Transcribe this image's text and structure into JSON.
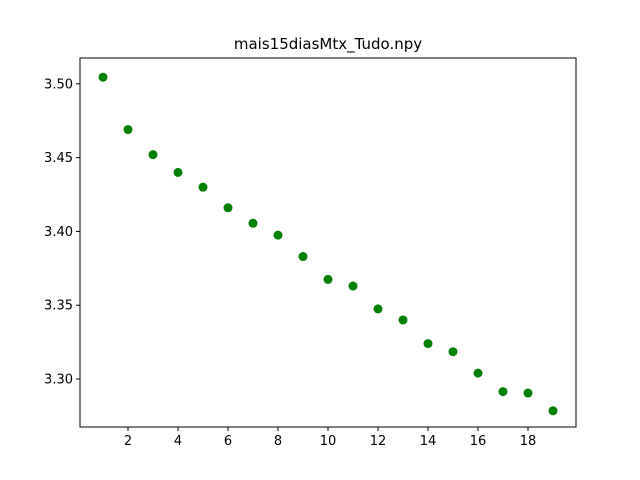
{
  "chart_data": {
    "type": "scatter",
    "title": "mais15diasMtx_Tudo.npy",
    "xlabel": "",
    "ylabel": "",
    "xlim": [
      0.08,
      19.92
    ],
    "ylim": [
      3.2675,
      3.5175
    ],
    "xticks": [
      2,
      4,
      6,
      8,
      10,
      12,
      14,
      16,
      18
    ],
    "xtick_labels": [
      "2",
      "4",
      "6",
      "8",
      "10",
      "12",
      "14",
      "16",
      "18"
    ],
    "yticks": [
      3.3,
      3.35,
      3.4,
      3.45,
      3.5
    ],
    "ytick_labels": [
      "3.30",
      "3.35",
      "3.40",
      "3.45",
      "3.50"
    ],
    "grid": false,
    "color": "#008000",
    "x": [
      1,
      2,
      3,
      4,
      5,
      6,
      7,
      8,
      9,
      10,
      11,
      12,
      13,
      14,
      15,
      16,
      17,
      18,
      19
    ],
    "y": [
      3.5045,
      3.469,
      3.452,
      3.44,
      3.43,
      3.416,
      3.4055,
      3.3975,
      3.383,
      3.3675,
      3.363,
      3.3475,
      3.34,
      3.324,
      3.3185,
      3.304,
      3.2915,
      3.2905,
      3.2785
    ]
  }
}
